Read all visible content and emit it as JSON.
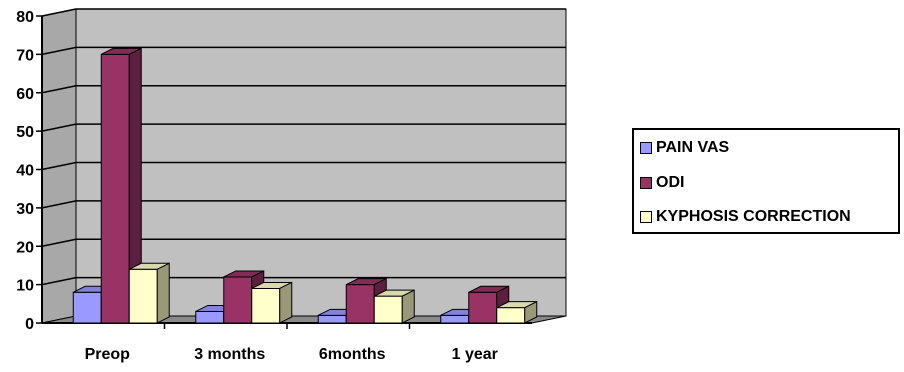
{
  "chart_data": {
    "type": "bar",
    "categories": [
      "Preop",
      "3 months",
      "6months",
      "1 year"
    ],
    "series": [
      {
        "name": "PAIN VAS",
        "values": [
          8,
          3,
          2,
          2
        ],
        "color": "#9999ff"
      },
      {
        "name": "ODI",
        "values": [
          70,
          12,
          10,
          8
        ],
        "color": "#993366"
      },
      {
        "name": "KYPHOSIS CORRECTION",
        "values": [
          14,
          9,
          7,
          4
        ],
        "color": "#ffffcc"
      }
    ],
    "yticks": [
      "0",
      "10",
      "20",
      "30",
      "40",
      "50",
      "60",
      "70",
      "80"
    ],
    "ylim": [
      0,
      80
    ],
    "grid": true,
    "legend_position": "right",
    "style": "3d-clustered-column",
    "plot_background": "#c0c0c0"
  }
}
